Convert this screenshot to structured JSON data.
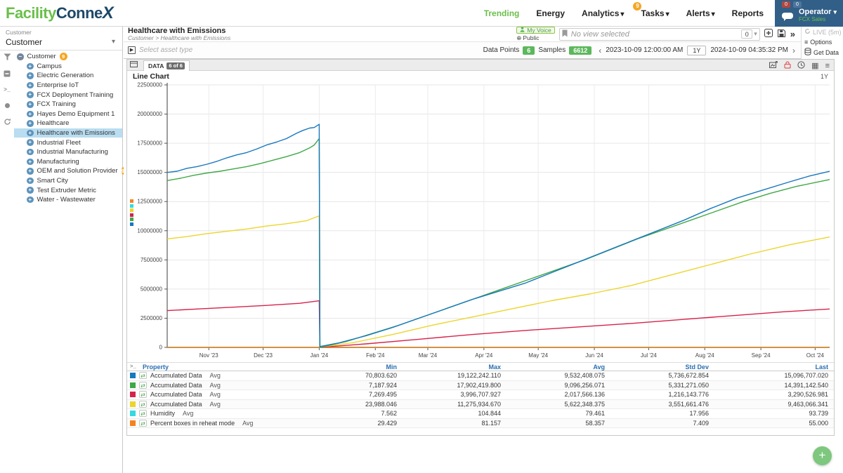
{
  "header": {
    "logo": {
      "part1": "Facility",
      "part2": "Conne",
      "part3": "X"
    },
    "nav": [
      {
        "label": "Trending",
        "active": true
      },
      {
        "label": "Energy"
      },
      {
        "label": "Analytics",
        "caret": true
      },
      {
        "label": "Tasks",
        "caret": true,
        "badge": "9"
      },
      {
        "label": "Alerts",
        "caret": true
      },
      {
        "label": "Reports"
      }
    ],
    "user": {
      "badge1": "0",
      "badge2": "0",
      "name": "Operator",
      "org": "FCX Sales"
    }
  },
  "sidebar": {
    "context_label": "Customer",
    "context_value": "Customer",
    "tree": [
      {
        "label": "Customer",
        "level": 0,
        "expanded": true,
        "badge": "9"
      },
      {
        "label": "Campus",
        "level": 1
      },
      {
        "label": "Electric Generation",
        "level": 1
      },
      {
        "label": "Enterprise IoT",
        "level": 1
      },
      {
        "label": "FCX Deployment Training",
        "level": 1
      },
      {
        "label": "FCX Training",
        "level": 1
      },
      {
        "label": "Hayes Demo Equipment 1",
        "level": 1
      },
      {
        "label": "Healthcare",
        "level": 1
      },
      {
        "label": "Healthcare with Emissions",
        "level": 1,
        "selected": true
      },
      {
        "label": "Industrial Fleet",
        "level": 1
      },
      {
        "label": "Industrial Manufacturing",
        "level": 1
      },
      {
        "label": "Manufacturing",
        "level": 1
      },
      {
        "label": "OEM and Solution Provider",
        "level": 1,
        "badge": "9"
      },
      {
        "label": "Smart City",
        "level": 1
      },
      {
        "label": "Test Extruder Metric",
        "level": 1
      },
      {
        "label": "Water - Wastewater",
        "level": 1
      }
    ]
  },
  "toolbar": {
    "title": "Healthcare with Emissions",
    "breadcrumb": "Customer > Healthcare with Emissions",
    "my_voice": "My Voice",
    "public": "Public",
    "view_placeholder": "No view selected",
    "spinner_value": "0",
    "expand_label": "»",
    "live": "LIVE (5m)",
    "options": "Options",
    "get_data": "Get Data",
    "asset_type_placeholder": "Select asset type",
    "data_points_label": "Data Points",
    "data_points": "6",
    "samples_label": "Samples",
    "samples": "6612",
    "date_start": "2023-10-09 12:00:00 AM",
    "range": "1Y",
    "date_end": "2024-10-09 04:35:32 PM"
  },
  "panel": {
    "tab": "DATA",
    "tab_badge": "6 of 6",
    "chart_title": "Line Chart",
    "range_label": "1Y"
  },
  "chart_data": {
    "type": "line",
    "title": "Line Chart",
    "ylim": [
      0,
      22500000
    ],
    "y_tick_step": 2500000,
    "grid": true,
    "legend_position": "left",
    "legend_colors": [
      "#f58220",
      "#35d9e0",
      "#ecd52c",
      "#d62349",
      "#3fa845",
      "#1878be"
    ],
    "x_ticks": [
      {
        "label": "Nov '23",
        "f": 0.0628
      },
      {
        "label": "Dec '23",
        "f": 0.1448
      },
      {
        "label": "Jan '24",
        "f": 0.2295
      },
      {
        "label": "Feb '24",
        "f": 0.3142
      },
      {
        "label": "Mar '24",
        "f": 0.3934
      },
      {
        "label": "Apr '24",
        "f": 0.4781
      },
      {
        "label": "May '24",
        "f": 0.5601
      },
      {
        "label": "Jun '24",
        "f": 0.6448
      },
      {
        "label": "Jul '24",
        "f": 0.7268
      },
      {
        "label": "Aug '24",
        "f": 0.8115
      },
      {
        "label": "Sep '24",
        "f": 0.8962
      },
      {
        "label": "Oct '24",
        "f": 0.9781
      }
    ],
    "series": [
      {
        "name": "Humidity Avg",
        "color": "#35d9e0",
        "points": [
          [
            0,
            90
          ],
          [
            1,
            94
          ]
        ]
      },
      {
        "name": "Percent boxes in reheat mode Avg",
        "color": "#f58220",
        "points": [
          [
            0,
            55
          ],
          [
            1,
            55
          ]
        ]
      },
      {
        "name": "Accumulated Data Avg (red)",
        "color": "#d62349",
        "points": [
          [
            0,
            3150000
          ],
          [
            0.05,
            3300000
          ],
          [
            0.1,
            3450000
          ],
          [
            0.15,
            3600000
          ],
          [
            0.2,
            3780000
          ],
          [
            0.2295,
            3996707
          ],
          [
            0.2305,
            7269
          ],
          [
            0.3,
            300000
          ],
          [
            0.38,
            700000
          ],
          [
            0.46,
            1100000
          ],
          [
            0.54,
            1450000
          ],
          [
            0.62,
            1750000
          ],
          [
            0.7,
            2050000
          ],
          [
            0.78,
            2400000
          ],
          [
            0.86,
            2750000
          ],
          [
            0.93,
            3050000
          ],
          [
            1,
            3290526
          ]
        ]
      },
      {
        "name": "Accumulated Data Avg (yellow)",
        "color": "#ecd52c",
        "points": [
          [
            0,
            9300000
          ],
          [
            0.03,
            9500000
          ],
          [
            0.06,
            9750000
          ],
          [
            0.09,
            9950000
          ],
          [
            0.12,
            10150000
          ],
          [
            0.15,
            10400000
          ],
          [
            0.18,
            10600000
          ],
          [
            0.21,
            10850000
          ],
          [
            0.2295,
            11275934
          ],
          [
            0.2305,
            23988
          ],
          [
            0.28,
            400000
          ],
          [
            0.34,
            1100000
          ],
          [
            0.4,
            1900000
          ],
          [
            0.46,
            2600000
          ],
          [
            0.52,
            3300000
          ],
          [
            0.58,
            4000000
          ],
          [
            0.64,
            4600000
          ],
          [
            0.7,
            5300000
          ],
          [
            0.76,
            6200000
          ],
          [
            0.82,
            7100000
          ],
          [
            0.88,
            8000000
          ],
          [
            0.94,
            8800000
          ],
          [
            1,
            9463066
          ]
        ]
      },
      {
        "name": "Accumulated Data Avg (green)",
        "color": "#3fa845",
        "points": [
          [
            0,
            14300000
          ],
          [
            0.02,
            14500000
          ],
          [
            0.04,
            14750000
          ],
          [
            0.06,
            14950000
          ],
          [
            0.08,
            15100000
          ],
          [
            0.1,
            15300000
          ],
          [
            0.12,
            15500000
          ],
          [
            0.14,
            15750000
          ],
          [
            0.16,
            16050000
          ],
          [
            0.18,
            16350000
          ],
          [
            0.2,
            16700000
          ],
          [
            0.215,
            17100000
          ],
          [
            0.222,
            17350000
          ],
          [
            0.2295,
            17902419
          ],
          [
            0.2305,
            7187
          ],
          [
            0.27,
            500000
          ],
          [
            0.31,
            1200000
          ],
          [
            0.35,
            1900000
          ],
          [
            0.39,
            2700000
          ],
          [
            0.43,
            3500000
          ],
          [
            0.47,
            4300000
          ],
          [
            0.51,
            5100000
          ],
          [
            0.55,
            5900000
          ],
          [
            0.59,
            6700000
          ],
          [
            0.63,
            7500000
          ],
          [
            0.67,
            8400000
          ],
          [
            0.71,
            9300000
          ],
          [
            0.75,
            10100000
          ],
          [
            0.79,
            10900000
          ],
          [
            0.83,
            11700000
          ],
          [
            0.87,
            12500000
          ],
          [
            0.91,
            13200000
          ],
          [
            0.95,
            13800000
          ],
          [
            1,
            14391142
          ]
        ]
      },
      {
        "name": "Accumulated Data Avg (blue)",
        "color": "#1878be",
        "points": [
          [
            0,
            15000000
          ],
          [
            0.015,
            15100000
          ],
          [
            0.03,
            15350000
          ],
          [
            0.045,
            15500000
          ],
          [
            0.06,
            15700000
          ],
          [
            0.075,
            15950000
          ],
          [
            0.09,
            16250000
          ],
          [
            0.105,
            16500000
          ],
          [
            0.12,
            16700000
          ],
          [
            0.135,
            17000000
          ],
          [
            0.15,
            17350000
          ],
          [
            0.165,
            17600000
          ],
          [
            0.18,
            17900000
          ],
          [
            0.195,
            18350000
          ],
          [
            0.205,
            18600000
          ],
          [
            0.215,
            18800000
          ],
          [
            0.222,
            18850000
          ],
          [
            0.2295,
            19122242
          ],
          [
            0.2305,
            70803
          ],
          [
            0.26,
            400000
          ],
          [
            0.3,
            1000000
          ],
          [
            0.34,
            1700000
          ],
          [
            0.38,
            2500000
          ],
          [
            0.42,
            3300000
          ],
          [
            0.46,
            4100000
          ],
          [
            0.5,
            4800000
          ],
          [
            0.54,
            5500000
          ],
          [
            0.58,
            6400000
          ],
          [
            0.62,
            7300000
          ],
          [
            0.66,
            8200000
          ],
          [
            0.7,
            9100000
          ],
          [
            0.74,
            10000000
          ],
          [
            0.78,
            10900000
          ],
          [
            0.82,
            11900000
          ],
          [
            0.86,
            12800000
          ],
          [
            0.9,
            13500000
          ],
          [
            0.94,
            14200000
          ],
          [
            0.97,
            14700000
          ],
          [
            1,
            15096707
          ]
        ]
      }
    ]
  },
  "table": {
    "columns": [
      "Property",
      "Min",
      "Max",
      "Avg",
      "Std Dev",
      "Last"
    ],
    "rows": [
      {
        "color": "#1878be",
        "property": "Accumulated Data",
        "agg": "Avg",
        "min": "70,803.620",
        "max": "19,122,242.110",
        "avg": "9,532,408.075",
        "std": "5,736,672.854",
        "last": "15,096,707.020"
      },
      {
        "color": "#3fa845",
        "property": "Accumulated Data",
        "agg": "Avg",
        "min": "7,187.924",
        "max": "17,902,419.800",
        "avg": "9,096,256.071",
        "std": "5,331,271.050",
        "last": "14,391,142.540"
      },
      {
        "color": "#d62349",
        "property": "Accumulated Data",
        "agg": "Avg",
        "min": "7,269.495",
        "max": "3,996,707.927",
        "avg": "2,017,566.136",
        "std": "1,216,143.776",
        "last": "3,290,526.981"
      },
      {
        "color": "#ecd52c",
        "property": "Accumulated Data",
        "agg": "Avg",
        "min": "23,988.046",
        "max": "11,275,934.670",
        "avg": "5,622,348.375",
        "std": "3,551,661.476",
        "last": "9,463,066.341"
      },
      {
        "color": "#35d9e0",
        "property": "Humidity",
        "agg": "Avg",
        "min": "7.562",
        "max": "104.844",
        "avg": "79.461",
        "std": "17.956",
        "last": "93.739"
      },
      {
        "color": "#f58220",
        "property": "Percent boxes in reheat mode",
        "agg": "Avg",
        "min": "29.429",
        "max": "81.157",
        "avg": "58.357",
        "std": "7.409",
        "last": "55.000"
      }
    ]
  },
  "fab": {
    "label": "+"
  }
}
